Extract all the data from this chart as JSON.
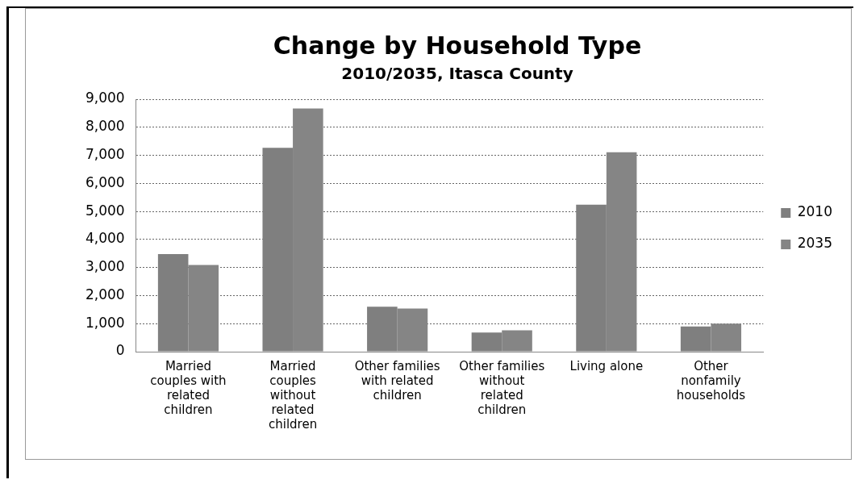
{
  "chart_data": {
    "type": "bar",
    "title": "Change by Household Type",
    "subtitle": "2010/2035, Itasca County",
    "categories": [
      "Married couples with related children",
      "Married couples without related children",
      "Other families with related children",
      "Other families without related children",
      "Living alone",
      "Other nonfamily households"
    ],
    "series": [
      {
        "name": "2010",
        "color": "#7f7f7f",
        "values": [
          3480,
          7270,
          1600,
          680,
          5240,
          900
        ]
      },
      {
        "name": "2035",
        "color": "#858585",
        "values": [
          3090,
          8670,
          1540,
          760,
          7110,
          1000
        ]
      }
    ],
    "ylim": [
      0,
      9000
    ],
    "yticks": [
      {
        "value": 0,
        "label": "0"
      },
      {
        "value": 1000,
        "label": "1,000"
      },
      {
        "value": 2000,
        "label": "2,000"
      },
      {
        "value": 3000,
        "label": "3,000"
      },
      {
        "value": 4000,
        "label": "4,000"
      },
      {
        "value": 5000,
        "label": "5,000"
      },
      {
        "value": 6000,
        "label": "6,000"
      },
      {
        "value": 7000,
        "label": "7,000"
      },
      {
        "value": 8000,
        "label": "8,000"
      },
      {
        "value": 9000,
        "label": "9,000"
      }
    ],
    "grid": "y",
    "legend": "right"
  }
}
